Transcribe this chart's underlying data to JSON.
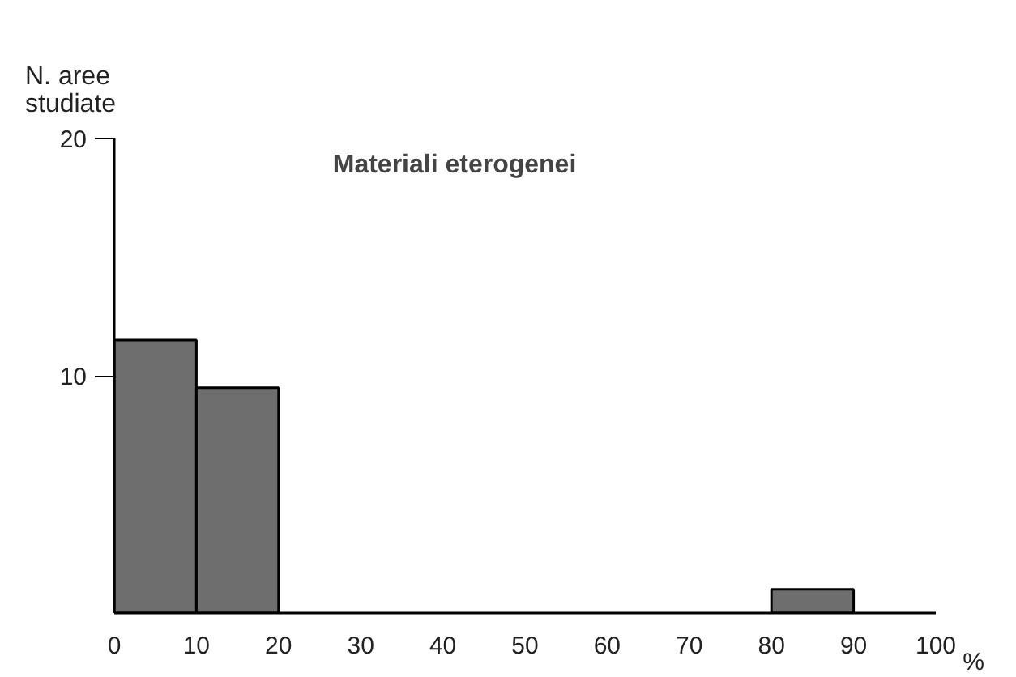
{
  "chart_data": {
    "type": "histogram",
    "title": "Materiali eterogenei",
    "xlabel": "%",
    "ylabel": "N. aree\nstudiate",
    "bins": [
      0,
      10,
      20,
      30,
      40,
      50,
      60,
      70,
      80,
      90,
      100
    ],
    "values": [
      11.5,
      9.5,
      0,
      0,
      0,
      0,
      0,
      0,
      1,
      0
    ],
    "color": "#6e6e6e",
    "xlim": [
      0,
      100
    ],
    "ylim": [
      0,
      20
    ],
    "xticks": [
      0,
      10,
      20,
      30,
      40,
      50,
      60,
      70,
      80,
      90,
      100
    ],
    "yticks": [
      10,
      20
    ],
    "grid": false,
    "legend": false
  }
}
